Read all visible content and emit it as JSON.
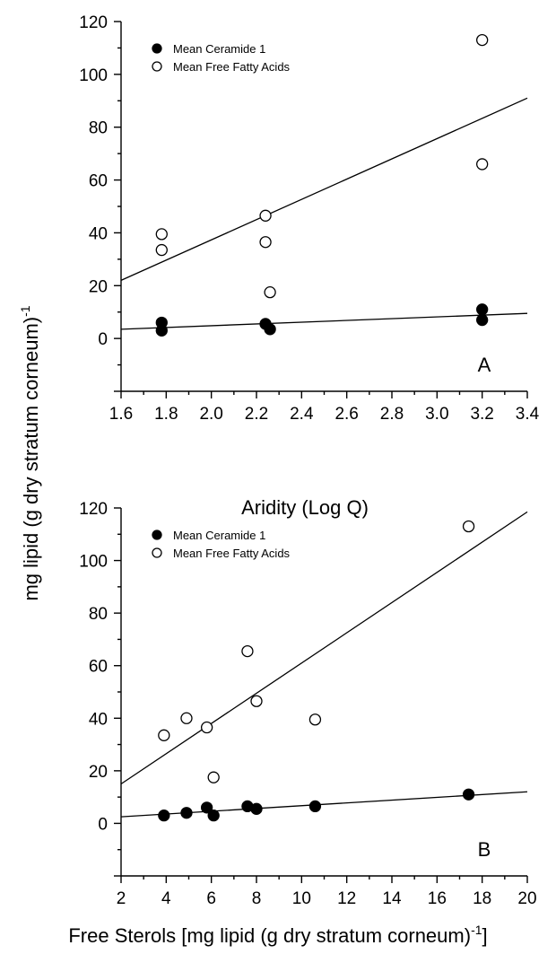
{
  "ylabel_main": "mg lipid (g dry stratum corneum)",
  "ylabel_sup": "-1",
  "chart_data": [
    {
      "type": "scatter",
      "panel_label": "A",
      "xlabel": "Aridity (Log Q)",
      "xlabel_sup": "",
      "xlim": [
        1.6,
        3.4
      ],
      "ylim": [
        -20,
        120
      ],
      "xticks": [
        "1.6",
        "1.8",
        "2.0",
        "2.2",
        "2.4",
        "2.6",
        "2.8",
        "3.0",
        "3.2",
        "3.4"
      ],
      "yticks": [
        "0",
        "20",
        "40",
        "60",
        "80",
        "100",
        "120"
      ],
      "legend": [
        "Mean Ceramide 1",
        "Mean Free Fatty Acids"
      ],
      "legend_position": "top-left",
      "series": [
        {
          "name": "Mean Ceramide 1",
          "marker": "filled-circle",
          "points": [
            [
              1.78,
              6.0
            ],
            [
              1.78,
              3.0
            ],
            [
              2.24,
              5.5
            ],
            [
              2.26,
              3.5
            ],
            [
              3.2,
              11.0
            ],
            [
              3.2,
              7.0
            ]
          ],
          "fit": [
            [
              1.6,
              3.5
            ],
            [
              3.4,
              9.5
            ]
          ]
        },
        {
          "name": "Mean Free Fatty Acids",
          "marker": "open-circle",
          "points": [
            [
              1.78,
              39.5
            ],
            [
              1.78,
              33.5
            ],
            [
              2.24,
              46.5
            ],
            [
              2.24,
              36.5
            ],
            [
              2.26,
              17.5
            ],
            [
              3.2,
              113.0
            ],
            [
              3.2,
              66.0
            ]
          ],
          "fit": [
            [
              1.6,
              22.0
            ],
            [
              3.4,
              91.0
            ]
          ]
        }
      ]
    },
    {
      "type": "scatter",
      "panel_label": "B",
      "xlabel": "Free Sterols [mg lipid (g dry stratum corneum)",
      "xlabel_sup": "-1",
      "xlabel_suffix": "]",
      "xlim": [
        2,
        20
      ],
      "ylim": [
        -20,
        120
      ],
      "xticks": [
        "2",
        "4",
        "6",
        "8",
        "10",
        "12",
        "14",
        "16",
        "18",
        "20"
      ],
      "yticks": [
        "0",
        "20",
        "40",
        "60",
        "80",
        "100",
        "120"
      ],
      "legend": [
        "Mean Ceramide 1",
        "Mean Free Fatty Acids"
      ],
      "legend_position": "top-left",
      "series": [
        {
          "name": "Mean Ceramide 1",
          "marker": "filled-circle",
          "points": [
            [
              3.9,
              3.0
            ],
            [
              4.9,
              4.0
            ],
            [
              5.8,
              6.0
            ],
            [
              6.1,
              3.0
            ],
            [
              7.6,
              6.5
            ],
            [
              8.0,
              5.5
            ],
            [
              10.6,
              6.5
            ],
            [
              17.4,
              11.0
            ]
          ],
          "fit": [
            [
              2,
              2.5
            ],
            [
              20,
              12.0
            ]
          ]
        },
        {
          "name": "Mean Free Fatty Acids",
          "marker": "open-circle",
          "points": [
            [
              3.9,
              33.5
            ],
            [
              4.9,
              40.0
            ],
            [
              5.8,
              36.5
            ],
            [
              6.1,
              17.5
            ],
            [
              7.6,
              65.5
            ],
            [
              8.0,
              46.5
            ],
            [
              10.6,
              39.5
            ],
            [
              17.4,
              113.0
            ]
          ],
          "fit": [
            [
              2,
              15.0
            ],
            [
              20,
              118.5
            ]
          ]
        }
      ]
    }
  ]
}
